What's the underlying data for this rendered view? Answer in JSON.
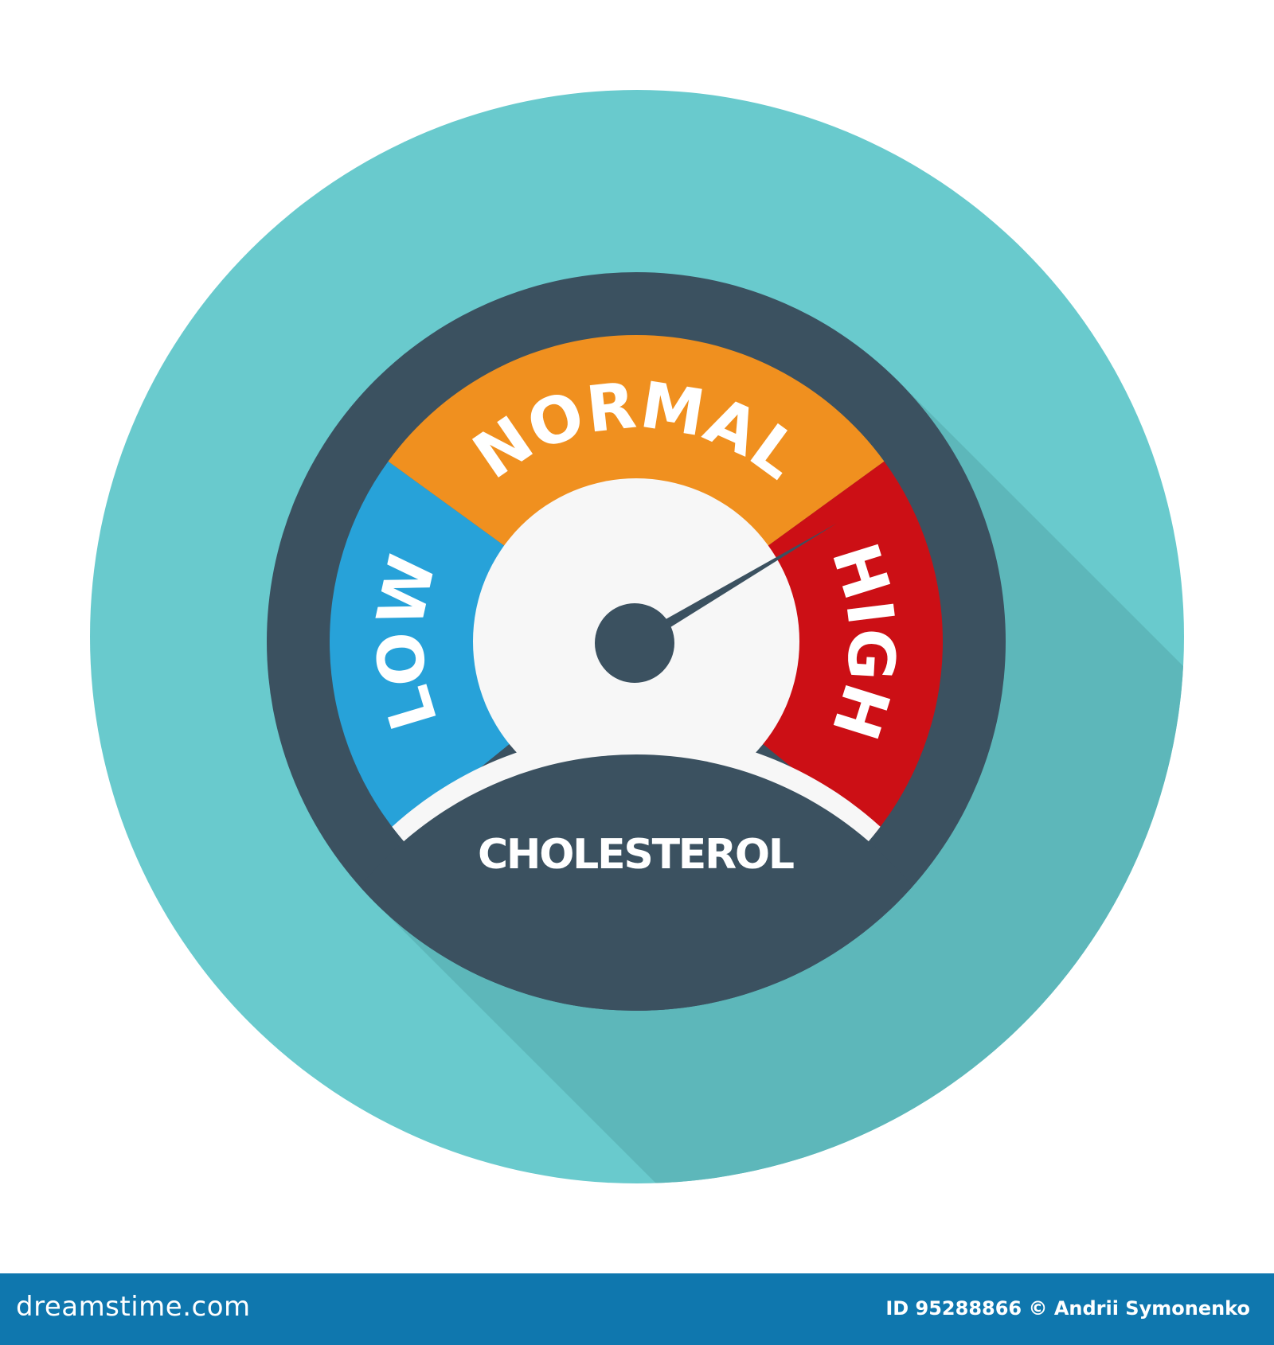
{
  "gauge": {
    "segments": [
      {
        "label": "LOW",
        "color": "#27a2d9"
      },
      {
        "label": "NORMAL",
        "color": "#f0901f"
      },
      {
        "label": "HIGH",
        "color": "#cc0f15"
      }
    ],
    "title": "CHOLESTEROL",
    "needle_level": 0.73,
    "needle_zone": "HIGH"
  },
  "colors": {
    "background_circle": "#69cacd",
    "shadow": "#5db7ba",
    "dial": "#3b5160",
    "face": "#f7f7f7"
  },
  "watermark": "dreamstime",
  "footer": {
    "brand": "dreamstime.com",
    "credit": "ID 95288866 © Andrii Symonenko"
  }
}
